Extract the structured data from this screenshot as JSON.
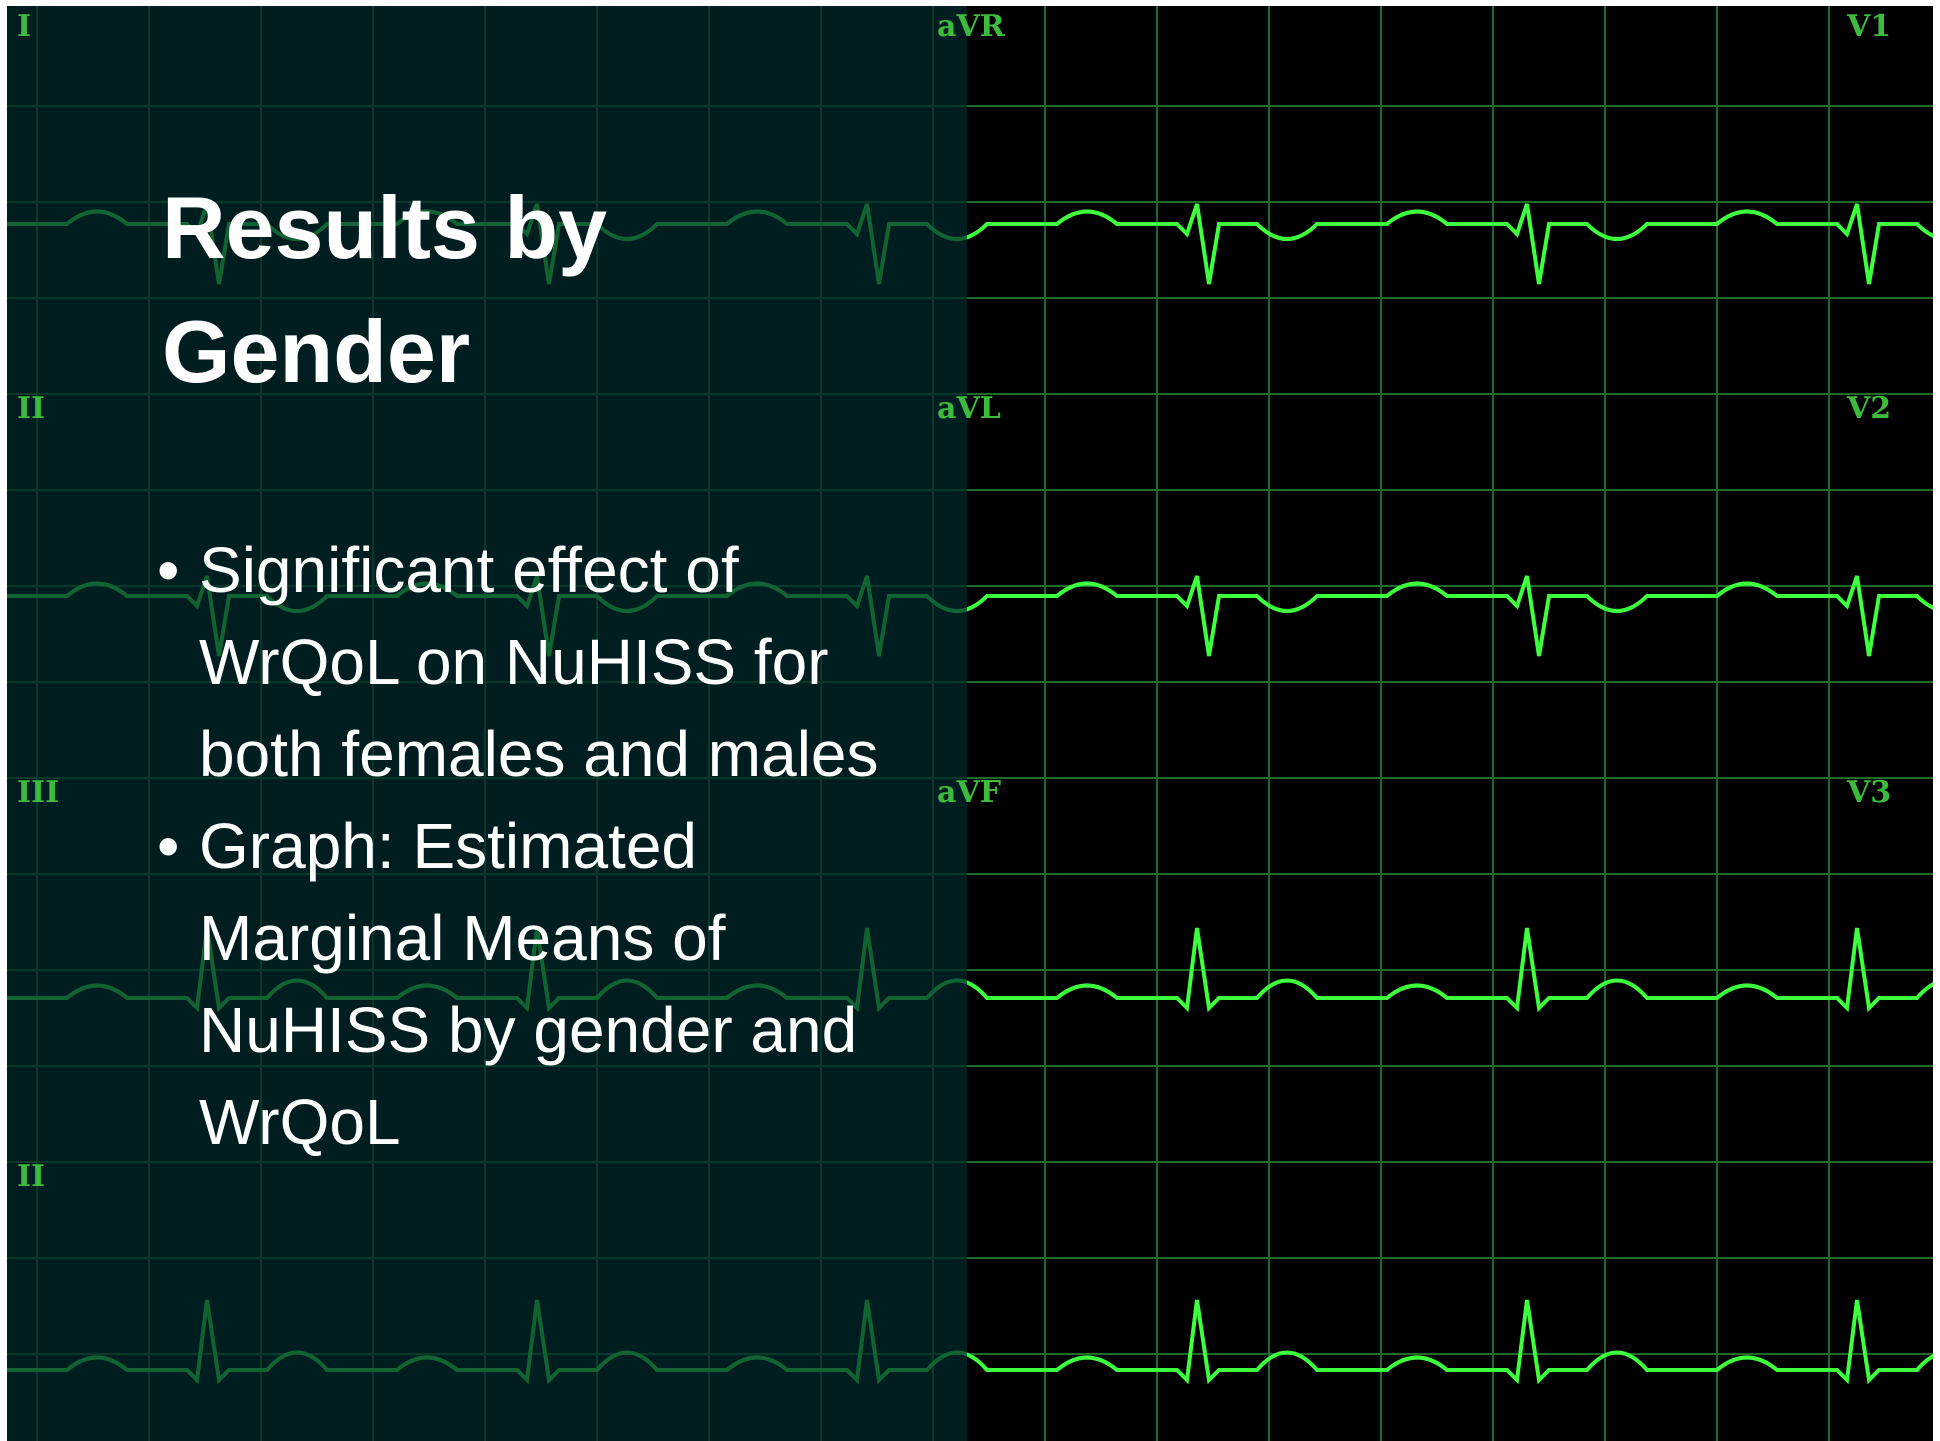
{
  "title": "Results by Gender",
  "bullets": [
    "Significant effect of WrQoL on NuHISS for both females and males",
    "Graph: Estimated Marginal Means of NuHISS by gender and WrQoL"
  ],
  "lead_labels": [
    "I",
    "aVR",
    "V1",
    "II",
    "aVL",
    "V2",
    "III",
    "aVF",
    "V3",
    "II"
  ]
}
